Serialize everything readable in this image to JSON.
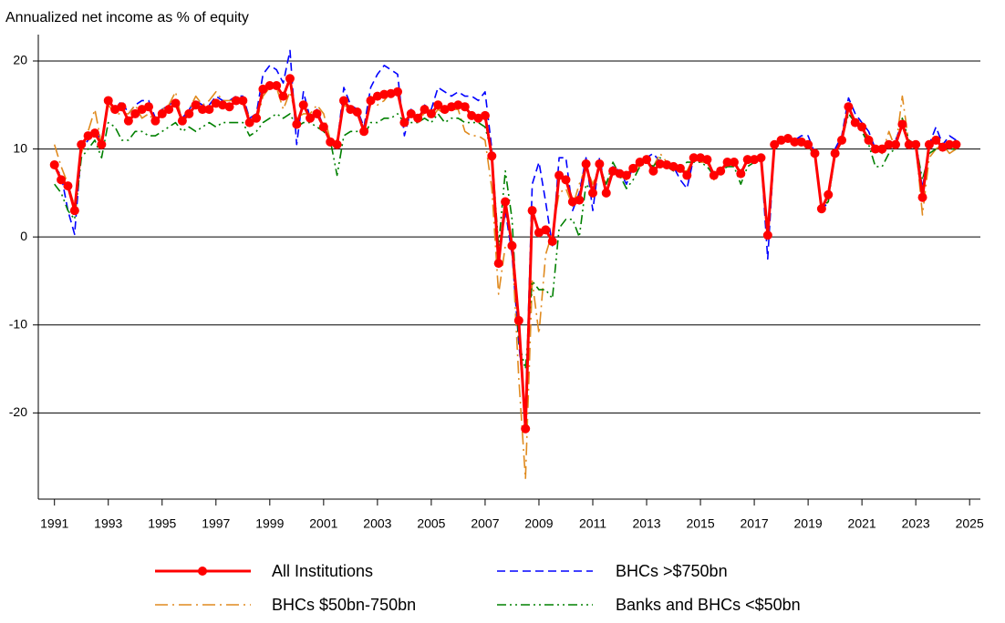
{
  "chart_data": {
    "type": "line",
    "y_axis_title": "Annualized net income as % of equity",
    "xlim": [
      1990.4,
      2025.4
    ],
    "ylim": [
      -29.8,
      23
    ],
    "xticks": [
      1991,
      1993,
      1995,
      1997,
      1999,
      2001,
      2003,
      2005,
      2007,
      2009,
      2011,
      2013,
      2015,
      2017,
      2019,
      2021,
      2023,
      2025
    ],
    "yticks": [
      -20,
      -10,
      0,
      10,
      20
    ],
    "grid": true,
    "x": [
      1991,
      1991.25,
      1991.5,
      1991.75,
      1992,
      1992.25,
      1992.5,
      1992.75,
      1993,
      1993.25,
      1993.5,
      1993.75,
      1994,
      1994.25,
      1994.5,
      1994.75,
      1995,
      1995.25,
      1995.5,
      1995.75,
      1996,
      1996.25,
      1996.5,
      1996.75,
      1997,
      1997.25,
      1997.5,
      1997.75,
      1998,
      1998.25,
      1998.5,
      1998.75,
      1999,
      1999.25,
      1999.5,
      1999.75,
      2000,
      2000.25,
      2000.5,
      2000.75,
      2001,
      2001.25,
      2001.5,
      2001.75,
      2002,
      2002.25,
      2002.5,
      2002.75,
      2003,
      2003.25,
      2003.5,
      2003.75,
      2004,
      2004.25,
      2004.5,
      2004.75,
      2005,
      2005.25,
      2005.5,
      2005.75,
      2006,
      2006.25,
      2006.5,
      2006.75,
      2007,
      2007.25,
      2007.5,
      2007.75,
      2008,
      2008.25,
      2008.5,
      2008.75,
      2009,
      2009.25,
      2009.5,
      2009.75,
      2010,
      2010.25,
      2010.5,
      2010.75,
      2011,
      2011.25,
      2011.5,
      2011.75,
      2012,
      2012.25,
      2012.5,
      2012.75,
      2013,
      2013.25,
      2013.5,
      2013.75,
      2014,
      2014.25,
      2014.5,
      2014.75,
      2015,
      2015.25,
      2015.5,
      2015.75,
      2016,
      2016.25,
      2016.5,
      2016.75,
      2017,
      2017.25,
      2017.5,
      2017.75,
      2018,
      2018.25,
      2018.5,
      2018.75,
      2019,
      2019.25,
      2019.5,
      2019.75,
      2020,
      2020.25,
      2020.5,
      2020.75,
      2021,
      2021.25,
      2021.5,
      2021.75,
      2022,
      2022.25,
      2022.5,
      2022.75,
      2023,
      2023.25,
      2023.5,
      2023.75,
      2024,
      2024.25,
      2024.5
    ],
    "series": [
      {
        "name": "BHCs >$750bn",
        "color": "#0000ff",
        "style": "dashed",
        "values": [
          8,
          7,
          3,
          0.3,
          10,
          11,
          12,
          11,
          15.5,
          14.5,
          15.5,
          14,
          15,
          15.5,
          15.5,
          13.5,
          14.5,
          15,
          15.5,
          13.5,
          14.5,
          15.5,
          15,
          15,
          16,
          15.5,
          15.5,
          16,
          16,
          13.5,
          14,
          18.5,
          19.5,
          19,
          17.5,
          21.2,
          10.5,
          16.5,
          13.5,
          14.5,
          12.5,
          11,
          10.5,
          17,
          15,
          14.5,
          12.5,
          17,
          18.5,
          19.5,
          19,
          18.5,
          11.5,
          14.5,
          13.5,
          15,
          14.5,
          17,
          16.5,
          16,
          16.5,
          16,
          16,
          15.5,
          16.5,
          10,
          -3,
          3,
          -2,
          -12,
          -20,
          6,
          8.5,
          4,
          -1,
          9,
          9,
          3,
          5,
          9,
          3,
          9,
          5,
          8,
          7.5,
          6,
          8,
          8.5,
          9,
          9.5,
          8.5,
          8,
          8,
          6.5,
          5.5,
          9,
          9,
          8.5,
          6.5,
          7.5,
          8.5,
          8.5,
          7.5,
          8.5,
          9,
          9,
          -2.5,
          10.5,
          11,
          11.5,
          11,
          11.5,
          11.5,
          9.5,
          3,
          4,
          10,
          11.5,
          15.8,
          14,
          13,
          12,
          10,
          9.5,
          10.5,
          11,
          13,
          10.5,
          11,
          5.5,
          10.5,
          12.5,
          10.5,
          11.5,
          11
        ]
      },
      {
        "name": "BHCs $50bn-750bn",
        "color": "#e08a1e",
        "style": "dashdot",
        "values": [
          10.5,
          8,
          6,
          3.5,
          9.5,
          12,
          14.5,
          10.5,
          15,
          14,
          14,
          14,
          15,
          13.5,
          14,
          13,
          14.5,
          15,
          16.5,
          13,
          14.5,
          16,
          15,
          15.5,
          16.5,
          15.5,
          15.5,
          15.5,
          15.5,
          13.5,
          13,
          16,
          17,
          17,
          14.5,
          16.5,
          13.5,
          14,
          14,
          15,
          14,
          11,
          11,
          15,
          14.5,
          14,
          12,
          16,
          15,
          15.5,
          16.5,
          17,
          13,
          14,
          13.5,
          14,
          13.5,
          14.5,
          14,
          14.5,
          14.5,
          12,
          11.5,
          11.5,
          11,
          5.5,
          -6.5,
          -1,
          -1,
          -16,
          -27.5,
          -5,
          -11,
          -2,
          0.5,
          5,
          5.5,
          3.5,
          6,
          8,
          6,
          8,
          6,
          7.5,
          7,
          6.5,
          8,
          8,
          9,
          8,
          9.5,
          8.5,
          8,
          7.5,
          7.5,
          9,
          8.5,
          8.5,
          6.5,
          7.5,
          8,
          8.5,
          7.5,
          8.5,
          9,
          9,
          0,
          10,
          11,
          11,
          10.5,
          11,
          10.5,
          9.5,
          3,
          4,
          9.5,
          11,
          14,
          13,
          12,
          11.5,
          10,
          9.5,
          12,
          10,
          16,
          10.5,
          10.5,
          2.5,
          9,
          10,
          10.5,
          9.5,
          10
        ]
      },
      {
        "name": "Banks and BHCs <$50bn",
        "color": "#008000",
        "style": "dashdotdot",
        "values": [
          6,
          5,
          3,
          2,
          9,
          10,
          11,
          9,
          13,
          12.5,
          11,
          11,
          12,
          12,
          11.5,
          11.5,
          12,
          12.5,
          13,
          12,
          12.5,
          12,
          12.5,
          13,
          12.5,
          13,
          13,
          13,
          13,
          11.5,
          12,
          13,
          13.5,
          14,
          13.5,
          14,
          12.5,
          13,
          13,
          12.5,
          12,
          11,
          7,
          11.5,
          12,
          12,
          11.5,
          13,
          13,
          13.5,
          13.5,
          14,
          13,
          13,
          13,
          13.5,
          13,
          14,
          13,
          13.5,
          13.5,
          13,
          13,
          13,
          12.5,
          9.5,
          -1,
          7.5,
          2,
          -12,
          -15,
          -5,
          -6,
          -6,
          -7,
          1,
          2,
          2,
          0,
          6,
          5,
          8,
          6,
          8.5,
          7,
          5.5,
          6.5,
          8,
          8.5,
          8,
          9,
          8,
          7.5,
          8,
          8.5,
          8.5,
          8.5,
          8,
          7,
          7.5,
          8,
          8,
          6,
          8,
          8.5,
          9,
          0.5,
          10.5,
          11,
          11,
          10.5,
          10.5,
          10.5,
          9,
          3.5,
          4,
          9.5,
          11,
          14,
          13,
          12,
          10.5,
          8,
          8,
          9.5,
          10,
          13.5,
          11,
          10.5,
          6.5,
          9.5,
          10,
          10,
          10,
          10
        ]
      },
      {
        "name": "All Institutions",
        "color": "#ff0000",
        "style": "solid",
        "marker": "circle",
        "values": [
          8.2,
          6.5,
          5.8,
          3.0,
          10.5,
          11.5,
          11.8,
          10.5,
          15.5,
          14.5,
          14.8,
          13.2,
          14.0,
          14.5,
          14.8,
          13.2,
          14.0,
          14.5,
          15.2,
          13.2,
          14.0,
          15.0,
          14.5,
          14.5,
          15.2,
          15.0,
          14.8,
          15.5,
          15.5,
          13.0,
          13.5,
          16.8,
          17.2,
          17.2,
          16.0,
          18.0,
          12.8,
          15.0,
          13.5,
          14.0,
          12.5,
          10.8,
          10.5,
          15.5,
          14.5,
          14.2,
          12.0,
          15.5,
          16.0,
          16.2,
          16.3,
          16.5,
          13.0,
          14.0,
          13.5,
          14.5,
          14.0,
          15.0,
          14.5,
          14.8,
          15.0,
          14.8,
          13.8,
          13.5,
          13.8,
          9.2,
          -3.0,
          4.0,
          -1.0,
          -9.5,
          -21.8,
          3.0,
          0.5,
          0.8,
          -0.5,
          7.0,
          6.5,
          4.0,
          4.2,
          8.3,
          5.0,
          8.3,
          5.0,
          7.5,
          7.2,
          7.0,
          7.8,
          8.5,
          8.8,
          7.5,
          8.3,
          8.2,
          8.0,
          7.8,
          7.0,
          9.0,
          9.0,
          8.8,
          7.0,
          7.5,
          8.5,
          8.5,
          7.2,
          8.8,
          8.8,
          9.0,
          0.2,
          10.5,
          11.0,
          11.2,
          10.8,
          10.8,
          10.5,
          9.5,
          3.2,
          4.8,
          9.5,
          11.0,
          14.8,
          13.0,
          12.5,
          11.0,
          10.0,
          10.0,
          10.5,
          10.5,
          12.8,
          10.5,
          10.5,
          4.5,
          10.5,
          11.0,
          10.2,
          10.5,
          10.5
        ]
      }
    ],
    "legend_order": [
      3,
      0,
      1,
      2
    ]
  }
}
